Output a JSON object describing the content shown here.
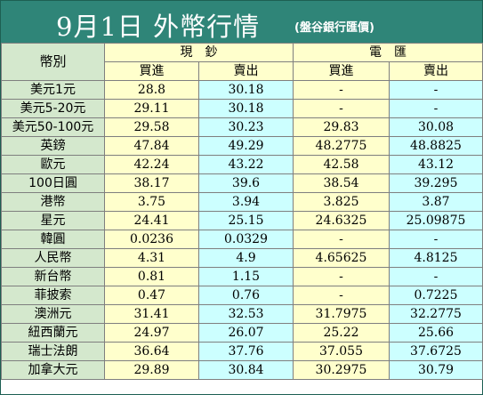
{
  "header": {
    "title": "9月1日 外幣行情",
    "subtitle": "(盤谷銀行匯價)"
  },
  "table": {
    "corner_label": "幣別",
    "groups": [
      "現　鈔",
      "電　匯"
    ],
    "subheaders": [
      "買進",
      "賣出",
      "買進",
      "賣出"
    ],
    "rows": [
      {
        "currency": "美元1元",
        "cash_buy": "28.8",
        "cash_sell": "30.18",
        "wire_buy": "-",
        "wire_sell": "-"
      },
      {
        "currency": "美元5-20元",
        "cash_buy": "29.11",
        "cash_sell": "30.18",
        "wire_buy": "-",
        "wire_sell": "-"
      },
      {
        "currency": "美元50-100元",
        "cash_buy": "29.58",
        "cash_sell": "30.23",
        "wire_buy": "29.83",
        "wire_sell": "30.08"
      },
      {
        "currency": "英鎊",
        "cash_buy": "47.84",
        "cash_sell": "49.29",
        "wire_buy": "48.2775",
        "wire_sell": "48.8825"
      },
      {
        "currency": "歐元",
        "cash_buy": "42.24",
        "cash_sell": "43.22",
        "wire_buy": "42.58",
        "wire_sell": "43.12"
      },
      {
        "currency": "100日圓",
        "cash_buy": "38.17",
        "cash_sell": "39.6",
        "wire_buy": "38.54",
        "wire_sell": "39.295"
      },
      {
        "currency": "港幣",
        "cash_buy": "3.75",
        "cash_sell": "3.94",
        "wire_buy": "3.825",
        "wire_sell": "3.87"
      },
      {
        "currency": "星元",
        "cash_buy": "24.41",
        "cash_sell": "25.15",
        "wire_buy": "24.6325",
        "wire_sell": "25.09875"
      },
      {
        "currency": "韓圓",
        "cash_buy": "0.0236",
        "cash_sell": "0.0329",
        "wire_buy": "-",
        "wire_sell": "-"
      },
      {
        "currency": "人民幣",
        "cash_buy": "4.31",
        "cash_sell": "4.9",
        "wire_buy": "4.65625",
        "wire_sell": "4.8125"
      },
      {
        "currency": "新台幣",
        "cash_buy": "0.81",
        "cash_sell": "1.15",
        "wire_buy": "-",
        "wire_sell": "-"
      },
      {
        "currency": "菲披索",
        "cash_buy": "0.47",
        "cash_sell": "0.76",
        "wire_buy": "-",
        "wire_sell": "0.7225"
      },
      {
        "currency": "澳洲元",
        "cash_buy": "31.41",
        "cash_sell": "32.53",
        "wire_buy": "31.7975",
        "wire_sell": "32.2775"
      },
      {
        "currency": "紐西蘭元",
        "cash_buy": "24.97",
        "cash_sell": "26.07",
        "wire_buy": "25.22",
        "wire_sell": "25.66"
      },
      {
        "currency": "瑞士法朗",
        "cash_buy": "36.64",
        "cash_sell": "37.76",
        "wire_buy": "37.055",
        "wire_sell": "37.6725"
      },
      {
        "currency": "加拿大元",
        "cash_buy": "29.89",
        "cash_sell": "30.84",
        "wire_buy": "30.2975",
        "wire_sell": "30.79"
      }
    ]
  },
  "colors": {
    "title_bar": "#2f8578",
    "label_column": "#d4e8cd",
    "buy_column": "#ffffcc",
    "sell_column": "#ccffff"
  }
}
